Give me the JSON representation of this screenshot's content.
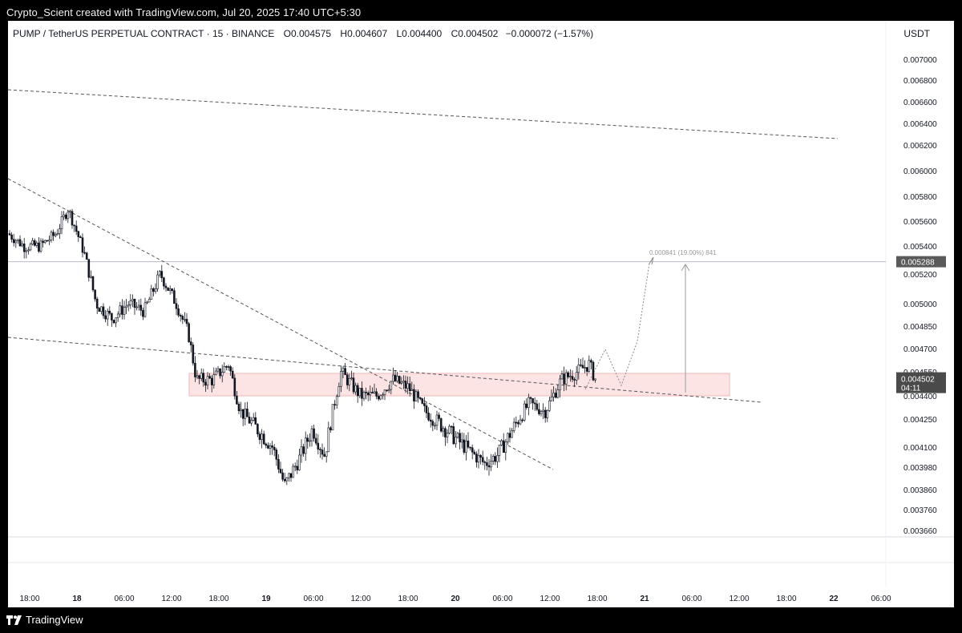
{
  "caption": "Crypto_Scient created with TradingView.com, Jul 20, 2025 17:40 UTC+5:30",
  "legend": {
    "symbol": "PUMP / TetherUS PERPETUAL CONTRACT · 15 · BINANCE",
    "open_label": "O",
    "open": "0.004575",
    "high_label": "H",
    "high": "0.004607",
    "low_label": "L",
    "low": "0.004400",
    "close_label": "C",
    "close": "0.004502",
    "change": "−0.000072 (−1.57%)"
  },
  "currency": "USDT",
  "price_axis_ticks": [
    "0.007000",
    "0.006800",
    "0.006600",
    "0.006400",
    "0.006200",
    "0.006000",
    "0.005800",
    "0.005600",
    "0.005400",
    "0.005200",
    "0.005000",
    "0.004850",
    "0.004700",
    "0.004550",
    "0.004400",
    "0.004250",
    "0.004100",
    "0.003980",
    "0.003860",
    "0.003760",
    "0.003660"
  ],
  "time_axis_ticks": [
    "18:00",
    "18",
    "06:00",
    "12:00",
    "18:00",
    "19",
    "06:00",
    "12:00",
    "18:00",
    "20",
    "06:00",
    "12:00",
    "18:00",
    "21",
    "06:00",
    "12:00",
    "18:00",
    "22",
    "06:00"
  ],
  "price_labels": {
    "horizontal_line": "0.005288",
    "last_price": "0.004502",
    "countdown": "04:11"
  },
  "measure_label": "0.000841 (19.00%) 841",
  "brand": "TradingView",
  "colors": {
    "background": "#000000",
    "chart_bg": "#ffffff",
    "candle": "#131722",
    "zone_fill": "#fce4e4",
    "zone_border": "#f2b8b8",
    "price_tag_bg": "#4a4a4a"
  },
  "icons": {
    "brand_logo": "tradingview-logo-icon"
  }
}
